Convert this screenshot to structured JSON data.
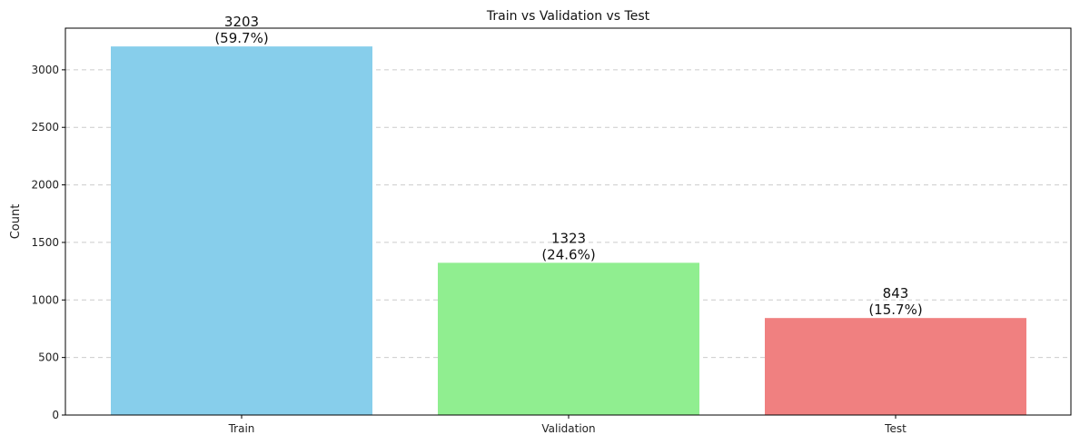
{
  "chart_data": {
    "type": "bar",
    "title": "Train vs Validation vs Test",
    "xlabel": "",
    "ylabel": "Count",
    "categories": [
      "Train",
      "Validation",
      "Test"
    ],
    "values": [
      3203,
      1323,
      843
    ],
    "value_labels": [
      "3203",
      "1323",
      "843"
    ],
    "percent_labels": [
      "(59.7%)",
      "(24.6%)",
      "(15.7%)"
    ],
    "colors": [
      "#87CEEB",
      "#90EE90",
      "#F08080"
    ],
    "ylim": [
      0,
      3362
    ],
    "yticks": [
      0,
      500,
      1000,
      1500,
      2000,
      2500,
      3000
    ],
    "ytick_labels": [
      "0",
      "500",
      "1000",
      "1500",
      "2000",
      "2500",
      "3000"
    ],
    "grid": "y-dashed",
    "legend": "none"
  }
}
